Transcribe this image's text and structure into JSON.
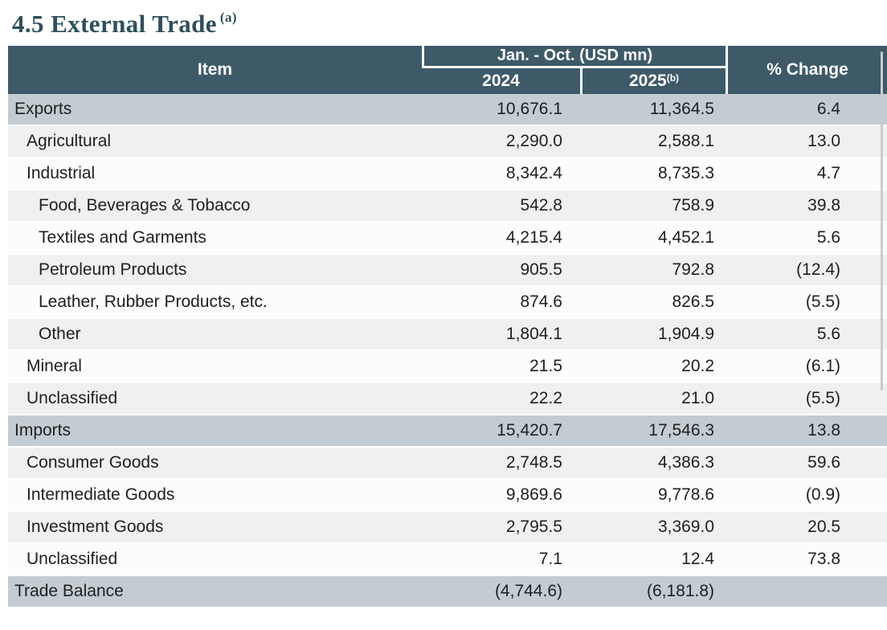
{
  "title": {
    "text": "4.5 External Trade",
    "superscript": "(a)"
  },
  "table": {
    "header": {
      "item": "Item",
      "group": "Jan. - Oct. (USD mn)",
      "year1": "2024",
      "year2": "2025",
      "year2_superscript": "(b)",
      "change": "% Change"
    },
    "rows": [
      {
        "label": "Exports",
        "y2024": "10,676.1",
        "y2025": "11,364.5",
        "change": "6.4",
        "indent": 0,
        "variant": "section"
      },
      {
        "label": "Agricultural",
        "y2024": "2,290.0",
        "y2025": "2,588.1",
        "change": "13.0",
        "indent": 1,
        "variant": "shaded"
      },
      {
        "label": "Industrial",
        "y2024": "8,342.4",
        "y2025": "8,735.3",
        "change": "4.7",
        "indent": 1,
        "variant": "plain"
      },
      {
        "label": "Food, Beverages & Tobacco",
        "y2024": "542.8",
        "y2025": "758.9",
        "change": "39.8",
        "indent": 2,
        "variant": "shaded"
      },
      {
        "label": "Textiles and Garments",
        "y2024": "4,215.4",
        "y2025": "4,452.1",
        "change": "5.6",
        "indent": 2,
        "variant": "plain"
      },
      {
        "label": "Petroleum Products",
        "y2024": "905.5",
        "y2025": "792.8",
        "change": "(12.4)",
        "indent": 2,
        "variant": "shaded"
      },
      {
        "label": "Leather, Rubber Products, etc.",
        "y2024": "874.6",
        "y2025": "826.5",
        "change": "(5.5)",
        "indent": 2,
        "variant": "plain"
      },
      {
        "label": "Other",
        "y2024": "1,804.1",
        "y2025": "1,904.9",
        "change": "5.6",
        "indent": 2,
        "variant": "shaded"
      },
      {
        "label": "Mineral",
        "y2024": "21.5",
        "y2025": "20.2",
        "change": "(6.1)",
        "indent": 1,
        "variant": "plain"
      },
      {
        "label": "Unclassified",
        "y2024": "22.2",
        "y2025": "21.0",
        "change": "(5.5)",
        "indent": 1,
        "variant": "shaded"
      },
      {
        "label": "Imports",
        "y2024": "15,420.7",
        "y2025": "17,546.3",
        "change": "13.8",
        "indent": 0,
        "variant": "section"
      },
      {
        "label": "Consumer Goods",
        "y2024": "2,748.5",
        "y2025": "4,386.3",
        "change": "59.6",
        "indent": 1,
        "variant": "shaded"
      },
      {
        "label": "Intermediate Goods",
        "y2024": "9,869.6",
        "y2025": "9,778.6",
        "change": "(0.9)",
        "indent": 1,
        "variant": "plain"
      },
      {
        "label": "Investment Goods",
        "y2024": "2,795.5",
        "y2025": "3,369.0",
        "change": "20.5",
        "indent": 1,
        "variant": "shaded"
      },
      {
        "label": "Unclassified",
        "y2024": "7.1",
        "y2025": "12.4",
        "change": "73.8",
        "indent": 1,
        "variant": "plain"
      },
      {
        "label": "Trade Balance",
        "y2024": "(4,744.6)",
        "y2025": "(6,181.8)",
        "change": "",
        "indent": 0,
        "variant": "section"
      }
    ]
  },
  "colors": {
    "header_bg": "#3e5a69",
    "section_row_bg": "#c3ccd2",
    "shaded_row_bg": "#f0f0f1",
    "plain_row_bg": "#fcfcfc",
    "title_color": "#2f4f5d",
    "body_text": "#1f1f1f"
  }
}
